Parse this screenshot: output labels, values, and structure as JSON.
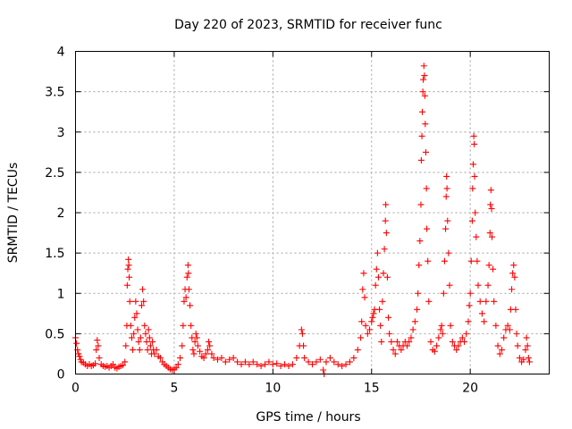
{
  "chart_data": {
    "type": "scatter",
    "title": "Day 220 of 2023, SRMTID for receiver func",
    "xlabel": "GPS time / hours",
    "ylabel": "SRMTID / TECUs",
    "xlim": [
      0,
      24
    ],
    "ylim": [
      0,
      4
    ],
    "xticks": [
      0,
      5,
      10,
      15,
      20
    ],
    "yticks": [
      0,
      0.5,
      1,
      1.5,
      2,
      2.5,
      3,
      3.5,
      4
    ],
    "xtick_labels": [
      "0",
      "5",
      "10",
      "15",
      "20"
    ],
    "ytick_labels": [
      "0",
      "0.5",
      "1",
      "1.5",
      "2",
      "2.5",
      "3",
      "3.5",
      "4"
    ],
    "grid": true,
    "marker": "+",
    "color": "#ff0000",
    "series": [
      {
        "name": "SRMTID",
        "points": [
          [
            0.0,
            0.45
          ],
          [
            0.05,
            0.38
          ],
          [
            0.1,
            0.3
          ],
          [
            0.15,
            0.25
          ],
          [
            0.2,
            0.22
          ],
          [
            0.25,
            0.18
          ],
          [
            0.3,
            0.15
          ],
          [
            0.4,
            0.14
          ],
          [
            0.5,
            0.12
          ],
          [
            0.6,
            0.1
          ],
          [
            0.7,
            0.12
          ],
          [
            0.8,
            0.1
          ],
          [
            0.9,
            0.11
          ],
          [
            1.0,
            0.13
          ],
          [
            1.05,
            0.3
          ],
          [
            1.1,
            0.42
          ],
          [
            1.15,
            0.35
          ],
          [
            1.2,
            0.2
          ],
          [
            1.3,
            0.12
          ],
          [
            1.4,
            0.1
          ],
          [
            1.5,
            0.09
          ],
          [
            1.6,
            0.1
          ],
          [
            1.7,
            0.08
          ],
          [
            1.8,
            0.1
          ],
          [
            1.9,
            0.12
          ],
          [
            2.0,
            0.08
          ],
          [
            2.1,
            0.07
          ],
          [
            2.2,
            0.09
          ],
          [
            2.3,
            0.1
          ],
          [
            2.4,
            0.11
          ],
          [
            2.5,
            0.15
          ],
          [
            2.55,
            0.35
          ],
          [
            2.6,
            0.6
          ],
          [
            2.62,
            1.1
          ],
          [
            2.65,
            1.3
          ],
          [
            2.68,
            1.42
          ],
          [
            2.7,
            1.35
          ],
          [
            2.72,
            1.2
          ],
          [
            2.75,
            0.9
          ],
          [
            2.8,
            0.6
          ],
          [
            2.85,
            0.45
          ],
          [
            2.9,
            0.3
          ],
          [
            2.95,
            0.5
          ],
          [
            3.0,
            0.7
          ],
          [
            3.05,
            0.9
          ],
          [
            3.1,
            0.75
          ],
          [
            3.15,
            0.55
          ],
          [
            3.2,
            0.4
          ],
          [
            3.25,
            0.3
          ],
          [
            3.3,
            0.45
          ],
          [
            3.35,
            0.85
          ],
          [
            3.4,
            1.05
          ],
          [
            3.45,
            0.9
          ],
          [
            3.5,
            0.6
          ],
          [
            3.55,
            0.5
          ],
          [
            3.6,
            0.4
          ],
          [
            3.65,
            0.3
          ],
          [
            3.7,
            0.55
          ],
          [
            3.75,
            0.45
          ],
          [
            3.8,
            0.35
          ],
          [
            3.85,
            0.25
          ],
          [
            3.9,
            0.4
          ],
          [
            3.95,
            0.3
          ],
          [
            4.0,
            0.25
          ],
          [
            4.1,
            0.3
          ],
          [
            4.2,
            0.22
          ],
          [
            4.3,
            0.2
          ],
          [
            4.4,
            0.15
          ],
          [
            4.5,
            0.12
          ],
          [
            4.6,
            0.1
          ],
          [
            4.7,
            0.08
          ],
          [
            4.8,
            0.06
          ],
          [
            4.9,
            0.05
          ],
          [
            5.0,
            0.06
          ],
          [
            5.1,
            0.08
          ],
          [
            5.2,
            0.12
          ],
          [
            5.3,
            0.2
          ],
          [
            5.4,
            0.35
          ],
          [
            5.45,
            0.6
          ],
          [
            5.5,
            0.9
          ],
          [
            5.55,
            1.05
          ],
          [
            5.6,
            0.95
          ],
          [
            5.65,
            1.2
          ],
          [
            5.7,
            1.35
          ],
          [
            5.72,
            1.25
          ],
          [
            5.75,
            1.05
          ],
          [
            5.8,
            0.85
          ],
          [
            5.85,
            0.6
          ],
          [
            5.9,
            0.45
          ],
          [
            5.95,
            0.3
          ],
          [
            6.0,
            0.25
          ],
          [
            6.05,
            0.4
          ],
          [
            6.1,
            0.5
          ],
          [
            6.15,
            0.45
          ],
          [
            6.2,
            0.35
          ],
          [
            6.3,
            0.28
          ],
          [
            6.4,
            0.22
          ],
          [
            6.5,
            0.2
          ],
          [
            6.6,
            0.25
          ],
          [
            6.7,
            0.3
          ],
          [
            6.75,
            0.4
          ],
          [
            6.8,
            0.35
          ],
          [
            6.9,
            0.25
          ],
          [
            7.0,
            0.2
          ],
          [
            7.2,
            0.18
          ],
          [
            7.4,
            0.2
          ],
          [
            7.6,
            0.15
          ],
          [
            7.8,
            0.18
          ],
          [
            8.0,
            0.2
          ],
          [
            8.2,
            0.15
          ],
          [
            8.4,
            0.12
          ],
          [
            8.6,
            0.15
          ],
          [
            8.8,
            0.12
          ],
          [
            9.0,
            0.15
          ],
          [
            9.2,
            0.12
          ],
          [
            9.4,
            0.1
          ],
          [
            9.6,
            0.12
          ],
          [
            9.8,
            0.15
          ],
          [
            10.0,
            0.12
          ],
          [
            10.2,
            0.13
          ],
          [
            10.4,
            0.1
          ],
          [
            10.6,
            0.12
          ],
          [
            10.8,
            0.1
          ],
          [
            11.0,
            0.12
          ],
          [
            11.2,
            0.2
          ],
          [
            11.35,
            0.35
          ],
          [
            11.45,
            0.55
          ],
          [
            11.5,
            0.5
          ],
          [
            11.55,
            0.35
          ],
          [
            11.6,
            0.2
          ],
          [
            11.8,
            0.15
          ],
          [
            12.0,
            0.12
          ],
          [
            12.2,
            0.15
          ],
          [
            12.4,
            0.18
          ],
          [
            12.55,
            0.05
          ],
          [
            12.6,
            0.0
          ],
          [
            12.7,
            0.15
          ],
          [
            12.9,
            0.2
          ],
          [
            13.1,
            0.15
          ],
          [
            13.3,
            0.12
          ],
          [
            13.5,
            0.1
          ],
          [
            13.7,
            0.12
          ],
          [
            13.9,
            0.15
          ],
          [
            14.1,
            0.2
          ],
          [
            14.3,
            0.3
          ],
          [
            14.45,
            0.45
          ],
          [
            14.5,
            0.65
          ],
          [
            14.55,
            1.05
          ],
          [
            14.6,
            1.25
          ],
          [
            14.65,
            0.95
          ],
          [
            14.7,
            0.6
          ],
          [
            14.8,
            0.5
          ],
          [
            14.9,
            0.55
          ],
          [
            15.0,
            0.65
          ],
          [
            15.05,
            0.7
          ],
          [
            15.1,
            0.75
          ],
          [
            15.15,
            0.8
          ],
          [
            15.2,
            1.1
          ],
          [
            15.25,
            1.3
          ],
          [
            15.3,
            1.5
          ],
          [
            15.35,
            1.2
          ],
          [
            15.4,
            0.8
          ],
          [
            15.45,
            0.6
          ],
          [
            15.5,
            0.4
          ],
          [
            15.55,
            0.9
          ],
          [
            15.6,
            1.25
          ],
          [
            15.65,
            1.55
          ],
          [
            15.7,
            1.9
          ],
          [
            15.72,
            2.1
          ],
          [
            15.75,
            1.75
          ],
          [
            15.8,
            1.2
          ],
          [
            15.85,
            0.7
          ],
          [
            15.9,
            0.5
          ],
          [
            16.0,
            0.4
          ],
          [
            16.1,
            0.3
          ],
          [
            16.2,
            0.25
          ],
          [
            16.3,
            0.4
          ],
          [
            16.4,
            0.35
          ],
          [
            16.5,
            0.3
          ],
          [
            16.6,
            0.35
          ],
          [
            16.7,
            0.4
          ],
          [
            16.8,
            0.35
          ],
          [
            16.9,
            0.4
          ],
          [
            17.0,
            0.45
          ],
          [
            17.1,
            0.55
          ],
          [
            17.2,
            0.65
          ],
          [
            17.3,
            0.8
          ],
          [
            17.35,
            1.0
          ],
          [
            17.4,
            1.35
          ],
          [
            17.45,
            1.65
          ],
          [
            17.5,
            2.1
          ],
          [
            17.52,
            2.65
          ],
          [
            17.55,
            2.95
          ],
          [
            17.57,
            3.25
          ],
          [
            17.6,
            3.5
          ],
          [
            17.62,
            3.65
          ],
          [
            17.65,
            3.82
          ],
          [
            17.68,
            3.7
          ],
          [
            17.7,
            3.45
          ],
          [
            17.72,
            3.1
          ],
          [
            17.75,
            2.75
          ],
          [
            17.78,
            2.3
          ],
          [
            17.8,
            1.8
          ],
          [
            17.85,
            1.4
          ],
          [
            17.9,
            0.9
          ],
          [
            18.0,
            0.4
          ],
          [
            18.1,
            0.3
          ],
          [
            18.2,
            0.28
          ],
          [
            18.3,
            0.35
          ],
          [
            18.4,
            0.45
          ],
          [
            18.5,
            0.55
          ],
          [
            18.55,
            0.6
          ],
          [
            18.6,
            0.5
          ],
          [
            18.65,
            1.0
          ],
          [
            18.7,
            1.4
          ],
          [
            18.75,
            1.8
          ],
          [
            18.78,
            2.2
          ],
          [
            18.8,
            2.45
          ],
          [
            18.82,
            2.3
          ],
          [
            18.85,
            1.9
          ],
          [
            18.9,
            1.5
          ],
          [
            18.95,
            1.1
          ],
          [
            19.0,
            0.6
          ],
          [
            19.1,
            0.4
          ],
          [
            19.2,
            0.35
          ],
          [
            19.3,
            0.3
          ],
          [
            19.4,
            0.35
          ],
          [
            19.5,
            0.4
          ],
          [
            19.6,
            0.45
          ],
          [
            19.7,
            0.4
          ],
          [
            19.8,
            0.5
          ],
          [
            19.9,
            0.65
          ],
          [
            19.95,
            0.85
          ],
          [
            20.0,
            1.0
          ],
          [
            20.05,
            1.4
          ],
          [
            20.1,
            1.9
          ],
          [
            20.12,
            2.3
          ],
          [
            20.15,
            2.6
          ],
          [
            20.18,
            2.95
          ],
          [
            20.2,
            2.85
          ],
          [
            20.22,
            2.45
          ],
          [
            20.25,
            2.0
          ],
          [
            20.3,
            1.7
          ],
          [
            20.35,
            1.4
          ],
          [
            20.4,
            1.1
          ],
          [
            20.5,
            0.9
          ],
          [
            20.6,
            0.75
          ],
          [
            20.7,
            0.65
          ],
          [
            20.8,
            0.9
          ],
          [
            20.9,
            1.1
          ],
          [
            20.95,
            1.35
          ],
          [
            21.0,
            1.75
          ],
          [
            21.02,
            2.1
          ],
          [
            21.05,
            2.28
          ],
          [
            21.08,
            2.05
          ],
          [
            21.1,
            1.7
          ],
          [
            21.15,
            1.3
          ],
          [
            21.2,
            0.9
          ],
          [
            21.3,
            0.6
          ],
          [
            21.4,
            0.35
          ],
          [
            21.5,
            0.25
          ],
          [
            21.6,
            0.3
          ],
          [
            21.7,
            0.45
          ],
          [
            21.8,
            0.55
          ],
          [
            21.9,
            0.6
          ],
          [
            22.0,
            0.55
          ],
          [
            22.05,
            0.8
          ],
          [
            22.1,
            1.05
          ],
          [
            22.15,
            1.25
          ],
          [
            22.2,
            1.35
          ],
          [
            22.25,
            1.2
          ],
          [
            22.3,
            0.8
          ],
          [
            22.35,
            0.5
          ],
          [
            22.4,
            0.35
          ],
          [
            22.5,
            0.2
          ],
          [
            22.6,
            0.15
          ],
          [
            22.7,
            0.18
          ],
          [
            22.8,
            0.3
          ],
          [
            22.85,
            0.45
          ],
          [
            22.9,
            0.35
          ],
          [
            22.95,
            0.2
          ],
          [
            23.0,
            0.15
          ]
        ]
      }
    ]
  }
}
